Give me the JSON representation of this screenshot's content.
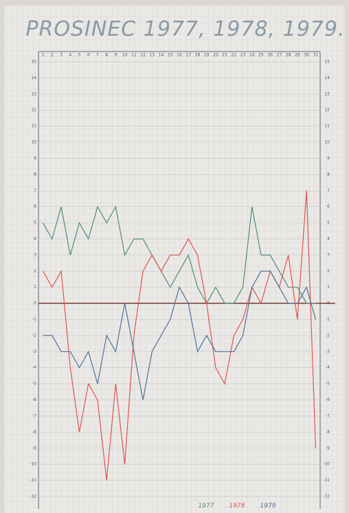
{
  "chart_data": {
    "type": "line",
    "title": "PROSINEC 1977, 1978, 1979.",
    "x": [
      1,
      2,
      3,
      4,
      5,
      6,
      7,
      8,
      9,
      10,
      11,
      12,
      13,
      14,
      15,
      16,
      17,
      18,
      19,
      20,
      21,
      22,
      23,
      24,
      25,
      26,
      27,
      28,
      29,
      30,
      31
    ],
    "xlim": [
      0.5,
      31.5
    ],
    "ylim": [
      -12,
      15
    ],
    "yticks": [
      -12,
      -11,
      -10,
      -9,
      -8,
      -7,
      -6,
      -5,
      -4,
      -3,
      -2,
      -1,
      0,
      1,
      2,
      3,
      4,
      5,
      6,
      7,
      8,
      9,
      10,
      11,
      12,
      13,
      14,
      15
    ],
    "grid": true,
    "series": [
      {
        "name": "1977",
        "color": "#4f8a7a",
        "values": [
          5,
          4,
          6,
          3,
          5,
          4,
          6,
          5,
          6,
          3,
          4,
          4,
          3,
          2,
          1,
          2,
          3,
          1,
          0,
          1,
          0,
          0,
          1,
          6,
          3,
          3,
          2,
          1,
          1,
          0,
          0
        ]
      },
      {
        "name": "1978",
        "color": "#e0524f",
        "values": [
          2,
          1,
          2,
          -4,
          -8,
          -5,
          -6,
          -11,
          -5,
          -10,
          -2,
          2,
          3,
          2,
          3,
          3,
          4,
          3,
          0,
          -4,
          -5,
          -2,
          -1,
          1,
          0,
          2,
          1,
          3,
          -1,
          7,
          -9
        ]
      },
      {
        "name": "1979",
        "color": "#4f6f9a",
        "values": [
          -2,
          -2,
          -3,
          -3,
          -4,
          -3,
          -5,
          -2,
          -3,
          0,
          -3,
          -6,
          -3,
          -2,
          -1,
          1,
          0,
          -3,
          -2,
          -3,
          -3,
          -3,
          -2,
          1,
          2,
          2,
          1,
          0,
          0,
          1,
          -1
        ]
      }
    ]
  }
}
